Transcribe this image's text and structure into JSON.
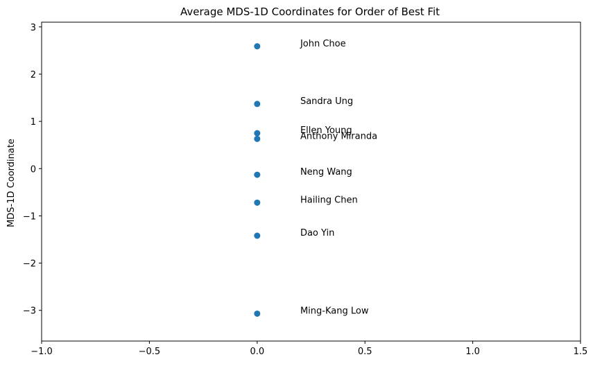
{
  "chart_data": {
    "type": "scatter",
    "title": "Average MDS-1D Coordinates for Order of Best Fit",
    "xlabel": "",
    "ylabel": "MDS-1D Coordinate",
    "xlim": [
      -1.0,
      1.5
    ],
    "ylim": [
      -3.65,
      3.1
    ],
    "xticks": [
      -1.0,
      -0.5,
      0.0,
      0.5,
      1.0,
      1.5
    ],
    "xtick_labels": [
      "−1.0",
      "−0.5",
      "0.0",
      "0.5",
      "1.0",
      "1.5"
    ],
    "yticks": [
      -3,
      -2,
      -1,
      0,
      1,
      2,
      3
    ],
    "ytick_labels": [
      "−3",
      "−2",
      "−1",
      "0",
      "1",
      "2",
      "3"
    ],
    "grid": false,
    "marker_color": "#1f77b4",
    "label_offset_x": 0.2,
    "points": [
      {
        "name": "John Choe",
        "x": 0.0,
        "y": 2.59
      },
      {
        "name": "Sandra Ung",
        "x": 0.0,
        "y": 1.37
      },
      {
        "name": "Ellen Young",
        "x": 0.0,
        "y": 0.75
      },
      {
        "name": "Anthony Miranda",
        "x": 0.0,
        "y": 0.63
      },
      {
        "name": "Neng Wang",
        "x": 0.0,
        "y": -0.13
      },
      {
        "name": "Hailing Chen",
        "x": 0.0,
        "y": -0.72
      },
      {
        "name": "Dao Yin",
        "x": 0.0,
        "y": -1.42
      },
      {
        "name": "Ming-Kang Low",
        "x": 0.0,
        "y": -3.07
      }
    ]
  }
}
